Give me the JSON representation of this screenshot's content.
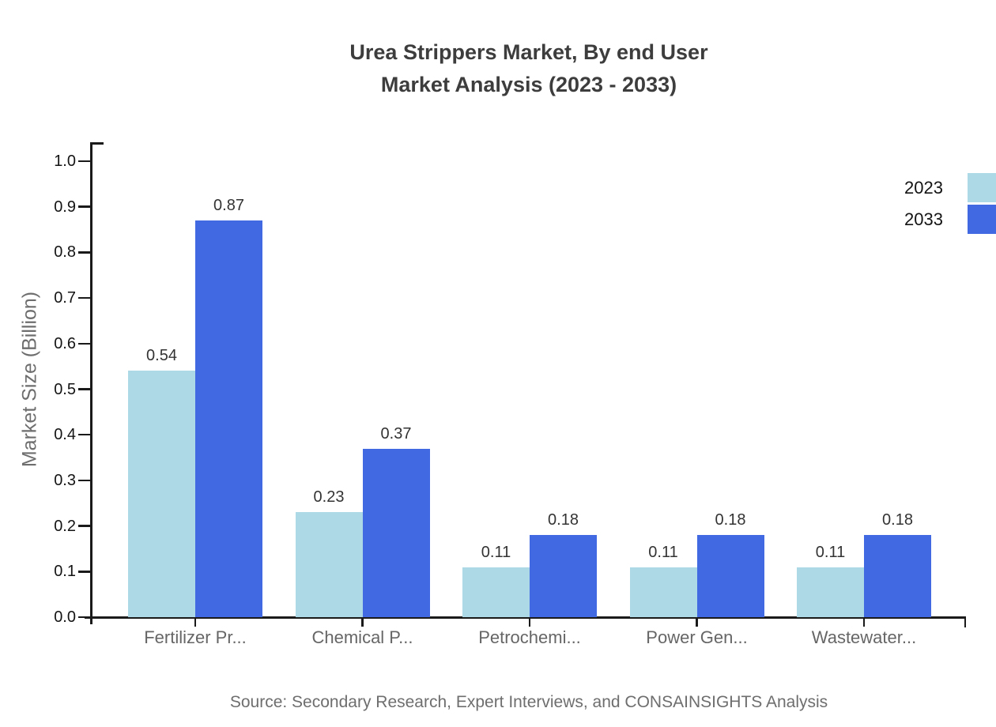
{
  "figure": {
    "source_note": "Source: Secondary Research, Expert Interviews, and CONSAINSIGHTS Analysis",
    "background": "#ffffff"
  },
  "chart_data": {
    "type": "bar",
    "title": "Urea Strippers Market, By end User\nMarket Analysis (2023 - 2033)",
    "xlabel": "",
    "ylabel": "Market Size (Billion)",
    "categories": [
      "Fertilizer Pr...",
      "Chemical P...",
      "Petrochemi...",
      "Power Gen...",
      "Wastewater..."
    ],
    "series": [
      {
        "name": "2023",
        "color": "#ADD8E6",
        "values": [
          0.54,
          0.23,
          0.11,
          0.11,
          0.11
        ]
      },
      {
        "name": "2033",
        "color": "#4169E1",
        "values": [
          0.87,
          0.37,
          0.18,
          0.18,
          0.18
        ]
      }
    ],
    "ylim": [
      0.0,
      1.0
    ],
    "yticks": [
      "0.0",
      "0.1",
      "0.2",
      "0.3",
      "0.4",
      "0.5",
      "0.6",
      "0.7",
      "0.8",
      "0.9",
      "1.0"
    ],
    "grid": false,
    "value_labels": true,
    "legend_position": "top-right"
  },
  "colors": {
    "title_text": "#3d3d3d",
    "tick_text": "#141414",
    "category_text": "#666666",
    "value_label_text": "#333333",
    "axis_title_text": "#6e6e6e",
    "source_text": "#6e6e6e",
    "axis_line": "#1a1a1a",
    "series_2023": "#ADD8E6",
    "series_2033": "#4169E1"
  }
}
